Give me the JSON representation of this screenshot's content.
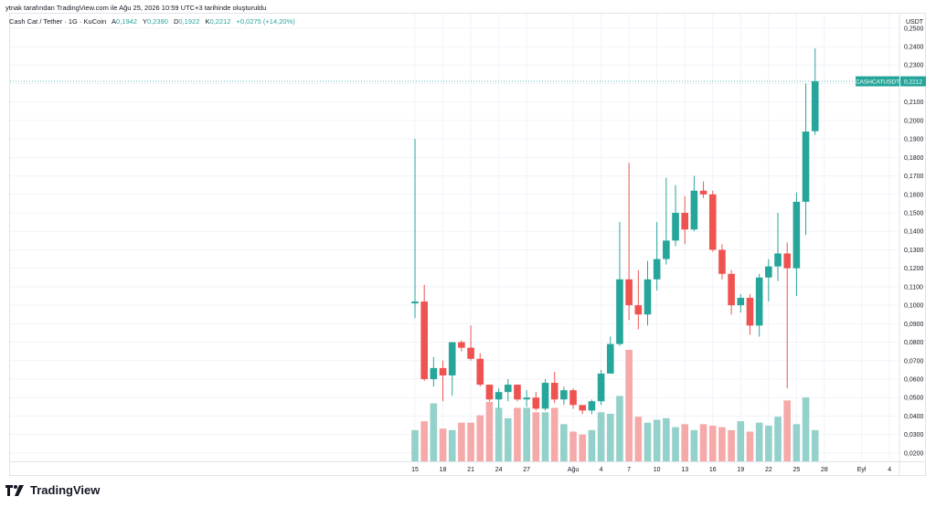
{
  "caption": "ytnak tarafından TradingView.com ile Ağu 25, 2026 10:59 UTC+3 tarihinde oluşturuldu",
  "symbol": {
    "title": "Cash Cat / Tether · 1G · KuCoin",
    "ohlc": [
      {
        "k": "A",
        "v": "0,1942"
      },
      {
        "k": "Y",
        "v": "0,2390"
      },
      {
        "k": "D",
        "v": "0,1922"
      },
      {
        "k": "K",
        "v": "0,2212"
      },
      {
        "k": "",
        "v": "+0,0275 (+14,20%)"
      }
    ]
  },
  "logo_text": "TradingView",
  "colors": {
    "up": "#26a69a",
    "down": "#ef5350",
    "vol_up": "#93d1ca",
    "vol_down": "#f5a9a8",
    "grid": "#f0f3fa",
    "axis_text": "#131722"
  },
  "chart_data": {
    "type": "candlestick",
    "currency_label": "USDT",
    "last_price_tag": {
      "symbol": "CASHCATUSDT",
      "value": "0,2212",
      "price": 0.2212
    },
    "y_ticks": [
      "0,2500",
      "0,2400",
      "0,2300",
      "0,2200",
      "0,2100",
      "0,2000",
      "0,1900",
      "0,1800",
      "0,1700",
      "0,1600",
      "0,1500",
      "0,1400",
      "0,1300",
      "0,1200",
      "0,1100",
      "0,1000",
      "0,0900",
      "0,0800",
      "0,0700",
      "0,0600",
      "0,0500",
      "0,0400",
      "0,0300",
      "0,0200"
    ],
    "y_tick_values": [
      0.25,
      0.24,
      0.23,
      0.22,
      0.21,
      0.2,
      0.19,
      0.18,
      0.17,
      0.16,
      0.15,
      0.14,
      0.13,
      0.12,
      0.11,
      0.1,
      0.09,
      0.08,
      0.07,
      0.06,
      0.05,
      0.04,
      0.03,
      0.02
    ],
    "ylim": [
      0.0155,
      0.2578
    ],
    "x_ticks": [
      {
        "label": "15",
        "index": 0
      },
      {
        "label": "18",
        "index": 3
      },
      {
        "label": "21",
        "index": 6
      },
      {
        "label": "24",
        "index": 9
      },
      {
        "label": "27",
        "index": 12
      },
      {
        "label": "Ağu",
        "index": 17
      },
      {
        "label": "4",
        "index": 20
      },
      {
        "label": "7",
        "index": 23
      },
      {
        "label": "10",
        "index": 26
      },
      {
        "label": "13",
        "index": 29
      },
      {
        "label": "16",
        "index": 32
      },
      {
        "label": "19",
        "index": 35
      },
      {
        "label": "22",
        "index": 38
      },
      {
        "label": "25",
        "index": 41
      },
      {
        "label": "28",
        "index": 44
      },
      {
        "label": "Eyl",
        "index": 48
      },
      {
        "label": "4",
        "index": 51
      }
    ],
    "candles": [
      {
        "o": 0.101,
        "h": 0.19,
        "l": 0.093,
        "c": 0.102,
        "v": 0.021
      },
      {
        "o": 0.102,
        "h": 0.111,
        "l": 0.059,
        "c": 0.06,
        "v": 0.027
      },
      {
        "o": 0.06,
        "h": 0.072,
        "l": 0.056,
        "c": 0.066,
        "v": 0.039
      },
      {
        "o": 0.066,
        "h": 0.07,
        "l": 0.048,
        "c": 0.062,
        "v": 0.022
      },
      {
        "o": 0.062,
        "h": 0.08,
        "l": 0.051,
        "c": 0.08,
        "v": 0.021
      },
      {
        "o": 0.08,
        "h": 0.081,
        "l": 0.075,
        "c": 0.077,
        "v": 0.026
      },
      {
        "o": 0.077,
        "h": 0.089,
        "l": 0.07,
        "c": 0.071,
        "v": 0.026
      },
      {
        "o": 0.071,
        "h": 0.074,
        "l": 0.056,
        "c": 0.057,
        "v": 0.031
      },
      {
        "o": 0.057,
        "h": 0.057,
        "l": 0.048,
        "c": 0.049,
        "v": 0.04
      },
      {
        "o": 0.049,
        "h": 0.055,
        "l": 0.044,
        "c": 0.053,
        "v": 0.036
      },
      {
        "o": 0.053,
        "h": 0.06,
        "l": 0.048,
        "c": 0.057,
        "v": 0.029
      },
      {
        "o": 0.057,
        "h": 0.057,
        "l": 0.048,
        "c": 0.049,
        "v": 0.036
      },
      {
        "o": 0.049,
        "h": 0.054,
        "l": 0.045,
        "c": 0.05,
        "v": 0.036
      },
      {
        "o": 0.05,
        "h": 0.053,
        "l": 0.043,
        "c": 0.044,
        "v": 0.033
      },
      {
        "o": 0.044,
        "h": 0.06,
        "l": 0.043,
        "c": 0.058,
        "v": 0.033
      },
      {
        "o": 0.058,
        "h": 0.064,
        "l": 0.047,
        "c": 0.049,
        "v": 0.036
      },
      {
        "o": 0.049,
        "h": 0.056,
        "l": 0.046,
        "c": 0.054,
        "v": 0.025
      },
      {
        "o": 0.054,
        "h": 0.055,
        "l": 0.044,
        "c": 0.046,
        "v": 0.02
      },
      {
        "o": 0.046,
        "h": 0.045,
        "l": 0.041,
        "c": 0.043,
        "v": 0.018
      },
      {
        "o": 0.043,
        "h": 0.049,
        "l": 0.041,
        "c": 0.048,
        "v": 0.021
      },
      {
        "o": 0.048,
        "h": 0.065,
        "l": 0.046,
        "c": 0.063,
        "v": 0.033
      },
      {
        "o": 0.063,
        "h": 0.083,
        "l": 0.063,
        "c": 0.079,
        "v": 0.032
      },
      {
        "o": 0.079,
        "h": 0.145,
        "l": 0.078,
        "c": 0.114,
        "v": 0.044
      },
      {
        "o": 0.114,
        "h": 0.177,
        "l": 0.092,
        "c": 0.1,
        "v": 0.075
      },
      {
        "o": 0.1,
        "h": 0.119,
        "l": 0.087,
        "c": 0.095,
        "v": 0.03
      },
      {
        "o": 0.095,
        "h": 0.124,
        "l": 0.089,
        "c": 0.114,
        "v": 0.026
      },
      {
        "o": 0.114,
        "h": 0.145,
        "l": 0.108,
        "c": 0.125,
        "v": 0.028
      },
      {
        "o": 0.125,
        "h": 0.169,
        "l": 0.122,
        "c": 0.135,
        "v": 0.029
      },
      {
        "o": 0.135,
        "h": 0.165,
        "l": 0.132,
        "c": 0.15,
        "v": 0.023
      },
      {
        "o": 0.15,
        "h": 0.159,
        "l": 0.133,
        "c": 0.141,
        "v": 0.025
      },
      {
        "o": 0.141,
        "h": 0.17,
        "l": 0.14,
        "c": 0.162,
        "v": 0.021
      },
      {
        "o": 0.162,
        "h": 0.167,
        "l": 0.158,
        "c": 0.16,
        "v": 0.025
      },
      {
        "o": 0.16,
        "h": 0.162,
        "l": 0.129,
        "c": 0.13,
        "v": 0.024
      },
      {
        "o": 0.13,
        "h": 0.133,
        "l": 0.114,
        "c": 0.117,
        "v": 0.023
      },
      {
        "o": 0.117,
        "h": 0.119,
        "l": 0.095,
        "c": 0.1,
        "v": 0.021
      },
      {
        "o": 0.1,
        "h": 0.106,
        "l": 0.096,
        "c": 0.104,
        "v": 0.027
      },
      {
        "o": 0.104,
        "h": 0.106,
        "l": 0.084,
        "c": 0.089,
        "v": 0.02
      },
      {
        "o": 0.089,
        "h": 0.117,
        "l": 0.083,
        "c": 0.115,
        "v": 0.026
      },
      {
        "o": 0.115,
        "h": 0.125,
        "l": 0.102,
        "c": 0.121,
        "v": 0.024
      },
      {
        "o": 0.121,
        "h": 0.15,
        "l": 0.113,
        "c": 0.128,
        "v": 0.03
      },
      {
        "o": 0.128,
        "h": 0.134,
        "l": 0.055,
        "c": 0.12,
        "v": 0.041
      },
      {
        "o": 0.12,
        "h": 0.161,
        "l": 0.105,
        "c": 0.156,
        "v": 0.025
      },
      {
        "o": 0.156,
        "h": 0.22,
        "l": 0.138,
        "c": 0.194,
        "v": 0.043
      },
      {
        "o": 0.1942,
        "h": 0.239,
        "l": 0.1922,
        "c": 0.2212,
        "v": 0.021
      }
    ]
  }
}
